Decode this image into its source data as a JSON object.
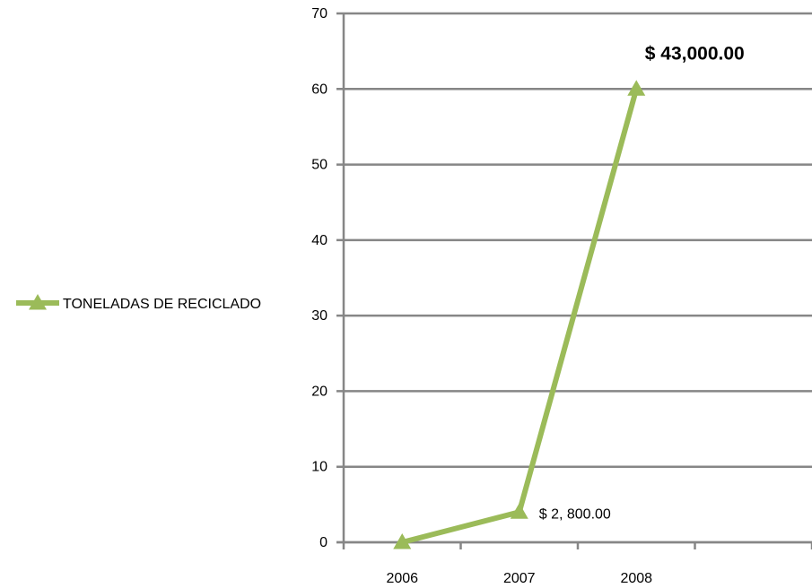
{
  "chart_data": {
    "type": "line",
    "categories": [
      "2006",
      "2007",
      "2008"
    ],
    "series": [
      {
        "name": "TONELADAS DE RECICLADO",
        "values": [
          0,
          4,
          60
        ],
        "color": "#9BBB59",
        "marker": "triangle"
      }
    ],
    "data_labels": [
      "",
      "$ 2, 800.00",
      "$ 43,000.00"
    ],
    "y_ticks": [
      "0",
      "10",
      "20",
      "30",
      "40",
      "50",
      "60",
      "70"
    ],
    "ylim": [
      0,
      70
    ],
    "grid": true,
    "gridline_color": "#868686",
    "legend_position": "left"
  }
}
